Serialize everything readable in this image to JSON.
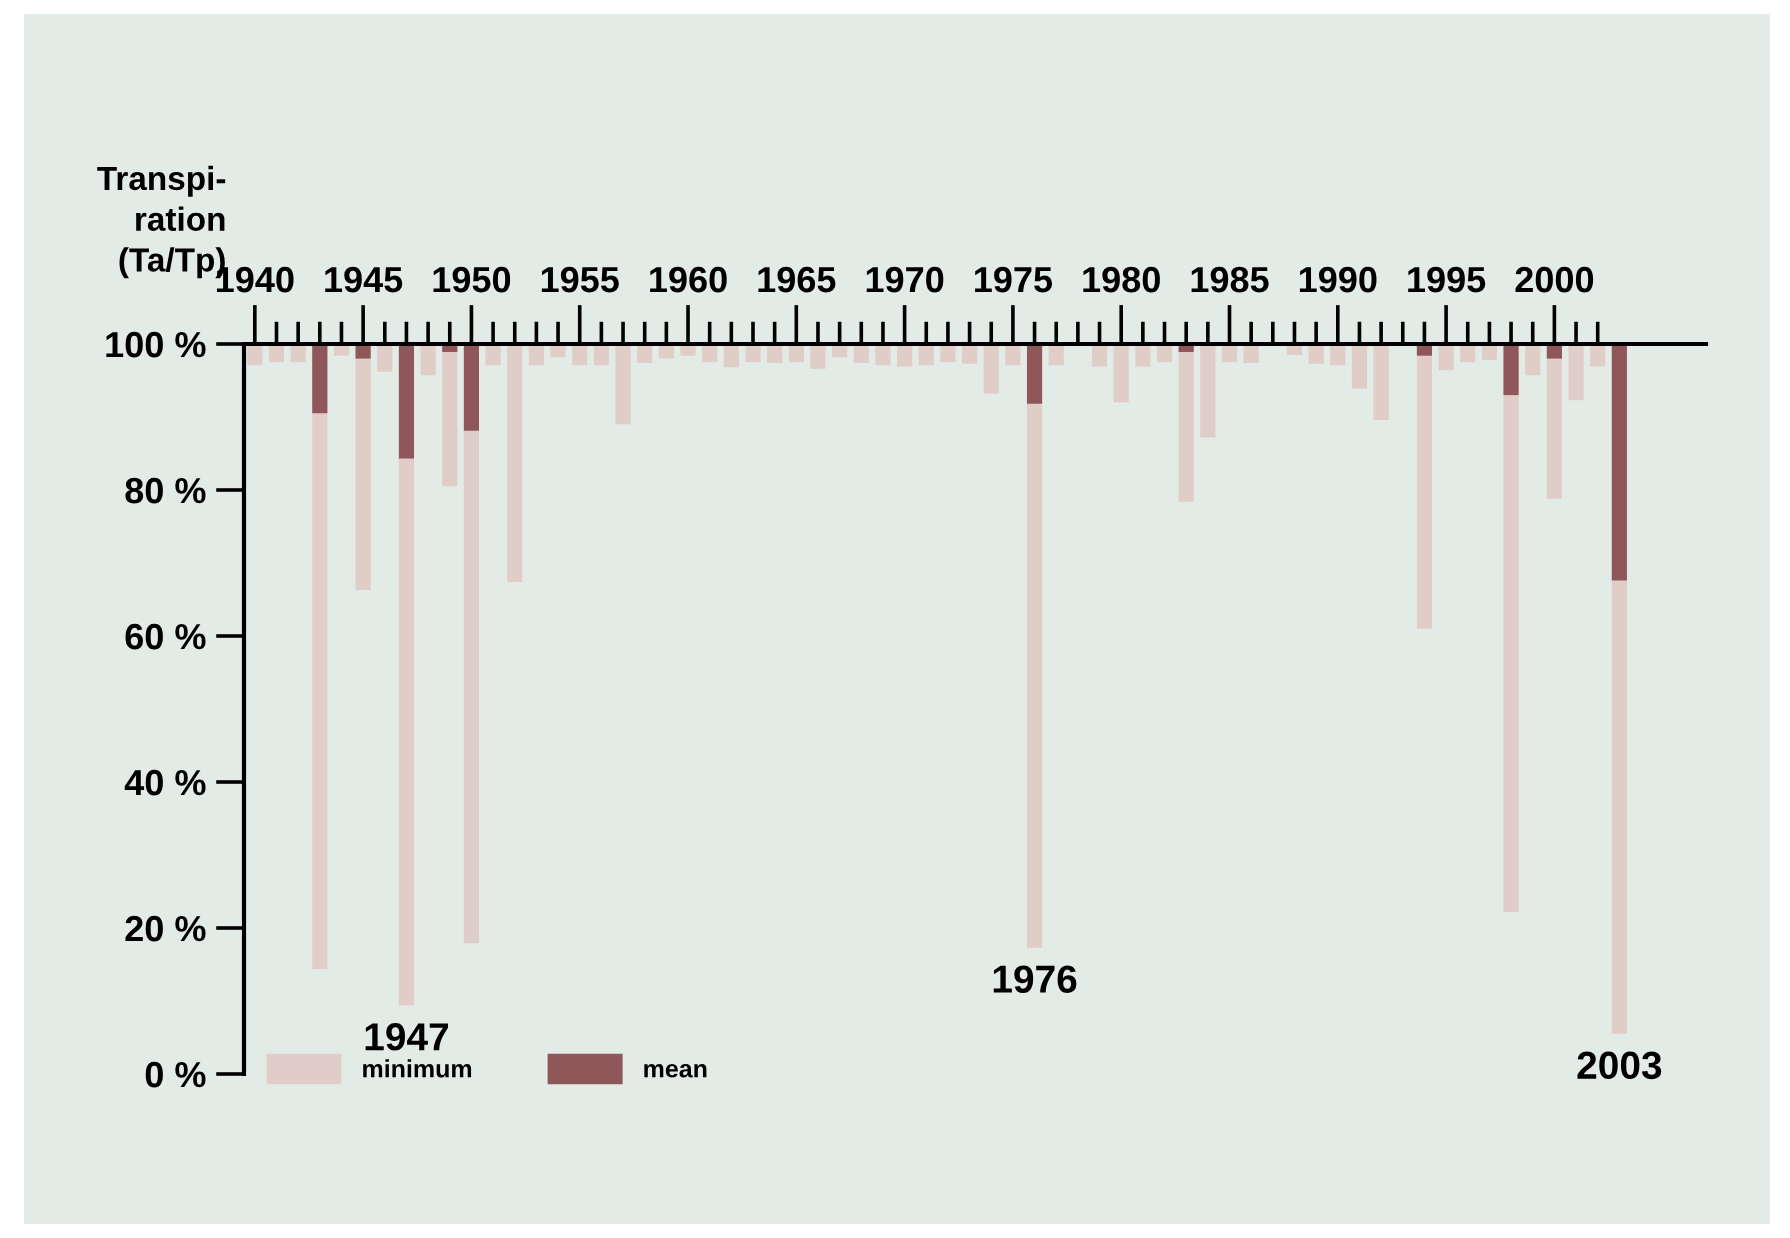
{
  "chart_data": {
    "type": "bar",
    "ylabel": "Transpi-\nration\n(Ta/Tp)",
    "x": [
      1940,
      1941,
      1942,
      1943,
      1944,
      1945,
      1946,
      1947,
      1948,
      1949,
      1950,
      1951,
      1952,
      1953,
      1954,
      1955,
      1956,
      1957,
      1958,
      1959,
      1960,
      1961,
      1962,
      1963,
      1964,
      1965,
      1966,
      1967,
      1968,
      1969,
      1970,
      1971,
      1972,
      1973,
      1974,
      1975,
      1976,
      1977,
      1978,
      1979,
      1980,
      1981,
      1982,
      1983,
      1984,
      1985,
      1986,
      1987,
      1988,
      1989,
      1990,
      1991,
      1992,
      1993,
      1994,
      1995,
      1996,
      1997,
      1998,
      1999,
      2000,
      2001,
      2002,
      2003
    ],
    "series": [
      {
        "name": "minimum",
        "color": "#e0cdc8",
        "base": [
          100,
          100,
          100,
          100,
          100,
          100,
          100,
          100,
          100,
          100,
          100,
          100,
          100,
          100,
          100,
          100,
          100,
          100,
          100,
          100,
          100,
          100,
          100,
          100,
          100,
          100,
          100,
          100,
          100,
          100,
          100,
          100,
          100,
          100,
          100,
          100,
          100,
          100,
          null,
          100,
          100,
          100,
          100,
          100,
          100,
          100,
          100,
          null,
          100,
          100,
          100,
          100,
          100,
          null,
          100,
          100,
          100,
          100,
          100,
          100,
          100,
          100,
          100,
          100
        ],
        "values": [
          -2.9,
          -2.5,
          -2.5,
          -85.6,
          -1.6,
          -33.7,
          -3.8,
          -90.6,
          -4.3,
          -19.5,
          -82.1,
          -2.9,
          -32.6,
          -2.9,
          -1.8,
          -2.9,
          -2.9,
          -11.0,
          -2.6,
          -2.0,
          -1.6,
          -2.5,
          -3.2,
          -2.5,
          -2.6,
          -2.5,
          -3.4,
          -1.8,
          -2.6,
          -2.9,
          -3.1,
          -2.9,
          -2.5,
          -2.7,
          -6.8,
          -2.9,
          -82.7,
          -2.9,
          null,
          -3.1,
          -8.0,
          -3.1,
          -2.5,
          -21.6,
          -12.8,
          -2.5,
          -2.6,
          null,
          -1.5,
          -2.7,
          -2.9,
          -6.1,
          -10.4,
          null,
          -39.0,
          -3.6,
          -2.5,
          -2.2,
          -77.8,
          -4.3,
          -21.2,
          -7.7,
          -3.1,
          -94.5
        ]
      },
      {
        "name": "mean",
        "color": "#8f575a",
        "base": [
          null,
          null,
          null,
          100,
          null,
          100,
          null,
          100,
          null,
          100,
          100,
          null,
          null,
          null,
          null,
          null,
          null,
          null,
          null,
          null,
          null,
          null,
          null,
          null,
          null,
          null,
          null,
          null,
          null,
          null,
          null,
          null,
          null,
          null,
          null,
          null,
          100,
          null,
          null,
          null,
          null,
          null,
          null,
          100,
          null,
          null,
          null,
          null,
          null,
          null,
          null,
          null,
          null,
          null,
          100,
          null,
          null,
          null,
          100,
          null,
          100,
          null,
          null,
          100
        ],
        "values": [
          null,
          null,
          null,
          -9.5,
          null,
          -2.0,
          null,
          -15.7,
          null,
          -1.1,
          -11.9,
          null,
          null,
          null,
          null,
          null,
          null,
          null,
          null,
          null,
          null,
          null,
          null,
          null,
          null,
          null,
          null,
          null,
          null,
          null,
          null,
          null,
          null,
          null,
          null,
          null,
          -8.2,
          null,
          null,
          null,
          null,
          null,
          null,
          -1.1,
          null,
          null,
          null,
          null,
          null,
          null,
          null,
          null,
          null,
          null,
          -1.6,
          null,
          null,
          null,
          -7.0,
          null,
          -2.0,
          null,
          null,
          -32.4
        ]
      }
    ],
    "ylim": [
      0,
      100
    ],
    "yticks": [
      {
        "value": 0,
        "label": "0 %"
      },
      {
        "value": 20,
        "label": "20 %"
      },
      {
        "value": 40,
        "label": "40 %"
      },
      {
        "value": 60,
        "label": "60 %"
      },
      {
        "value": 80,
        "label": "80 %"
      },
      {
        "value": 100,
        "label": "100 %"
      }
    ],
    "xlim": [
      1939.5,
      2007
    ],
    "xticks": [
      1940,
      {
        "value": 1941,
        "label": null
      },
      {
        "value": 1942,
        "label": null
      },
      {
        "value": 1943,
        "label": null
      },
      {
        "value": 1944,
        "label": null
      },
      1945,
      {
        "value": 1946,
        "label": null
      },
      {
        "value": 1947,
        "label": null
      },
      {
        "value": 1948,
        "label": null
      },
      {
        "value": 1949,
        "label": null
      },
      1950,
      {
        "value": 1951,
        "label": null
      },
      {
        "value": 1952,
        "label": null
      },
      {
        "value": 1953,
        "label": null
      },
      {
        "value": 1954,
        "label": null
      },
      1955,
      {
        "value": 1956,
        "label": null
      },
      {
        "value": 1957,
        "label": null
      },
      {
        "value": 1958,
        "label": null
      },
      {
        "value": 1959,
        "label": null
      },
      1960,
      {
        "value": 1961,
        "label": null
      },
      {
        "value": 1962,
        "label": null
      },
      {
        "value": 1963,
        "label": null
      },
      {
        "value": 1964,
        "label": null
      },
      1965,
      {
        "value": 1966,
        "label": null
      },
      {
        "value": 1967,
        "label": null
      },
      {
        "value": 1968,
        "label": null
      },
      {
        "value": 1969,
        "label": null
      },
      1970,
      {
        "value": 1971,
        "label": null
      },
      {
        "value": 1972,
        "label": null
      },
      {
        "value": 1973,
        "label": null
      },
      {
        "value": 1974,
        "label": null
      },
      1975,
      {
        "value": 1976,
        "label": null
      },
      {
        "value": 1977,
        "label": null
      },
      {
        "value": 1978,
        "label": null
      },
      {
        "value": 1979,
        "label": null
      },
      1980,
      {
        "value": 1981,
        "label": null
      },
      {
        "value": 1982,
        "label": null
      },
      {
        "value": 1983,
        "label": null
      },
      {
        "value": 1984,
        "label": null
      },
      1985,
      {
        "value": 1986,
        "label": null
      },
      {
        "value": 1987,
        "label": null
      },
      {
        "value": 1988,
        "label": null
      },
      {
        "value": 1989,
        "label": null
      },
      1990,
      {
        "value": 1991,
        "label": null
      },
      {
        "value": 1992,
        "label": null
      },
      {
        "value": 1993,
        "label": null
      },
      {
        "value": 1994,
        "label": null
      },
      1995,
      {
        "value": 1996,
        "label": null
      },
      {
        "value": 1997,
        "label": null
      },
      {
        "value": 1998,
        "label": null
      },
      {
        "value": 1999,
        "label": null
      },
      2000,
      {
        "value": 2001,
        "label": null
      },
      {
        "value": 2002,
        "label": null
      }
    ],
    "annotations": [
      {
        "text": "1947",
        "x": 1947,
        "y": 9.4
      },
      {
        "text": "1976",
        "x": 1976,
        "y": 17.3
      },
      {
        "text": "2003",
        "x": 2003,
        "y": 5.5
      }
    ],
    "legend": "bottom left",
    "grid": false
  }
}
